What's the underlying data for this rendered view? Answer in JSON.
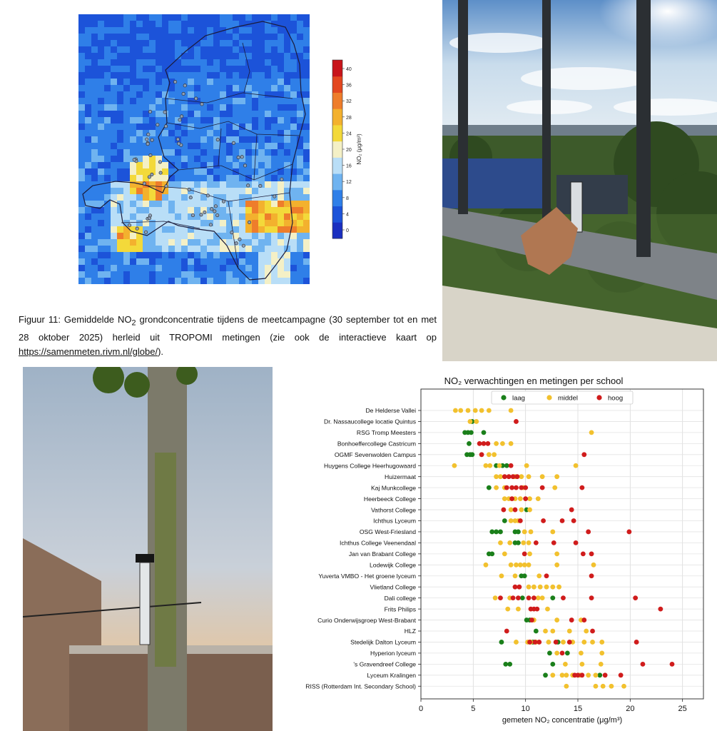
{
  "caption": {
    "text_before": "Figuur 11: Gemiddelde NO",
    "sub": "2",
    "text_after": " grondconcentratie tijdens de meetcampagne (30 september tot en met 28 oktober 2025) herleid uit TROPOMI metingen (zie ook de interactieve kaart op ",
    "link": "https://samenmeten.rivm.nl/globe/",
    "end": ")."
  },
  "map": {
    "colorbar_label": "NO₂ (μg/m³)",
    "colorbar_ticks": [
      "0",
      "4",
      "8",
      "12",
      "16",
      "20",
      "24",
      "28",
      "32",
      "36",
      "40"
    ],
    "colors": [
      "#1a2fc0",
      "#1c53d9",
      "#2f7fe8",
      "#6fb3f0",
      "#b9def7",
      "#f4f0c6",
      "#f3d93a",
      "#f3b12e",
      "#ee7d2b",
      "#e3471f",
      "#c8141a"
    ]
  },
  "chart_data": {
    "type": "scatter",
    "title": "NO₂ verwachtingen en metingen per school",
    "xlabel": "gemeten NO₂ concentratie (μg/m³)",
    "xlim": [
      0,
      27
    ],
    "xticks": [
      0,
      5,
      10,
      15,
      20,
      25
    ],
    "grid": true,
    "legend_position": "top-center",
    "series": [
      {
        "name": "laag",
        "color": "#1a7f1a"
      },
      {
        "name": "middel",
        "color": "#f2c12e"
      },
      {
        "name": "hoog",
        "color": "#d01c1c"
      }
    ],
    "schools": [
      {
        "name": "De Helderse Vallei",
        "laag": [],
        "middel": [
          3.3,
          3.8,
          4.5,
          5.2,
          5.8,
          6.5,
          8.6
        ],
        "hoog": []
      },
      {
        "name": "Dr. Nassaucollege locatie Quintus",
        "laag": [
          4.9
        ],
        "middel": [
          4.7,
          5.3
        ],
        "hoog": [
          9.1
        ]
      },
      {
        "name": "RSG Tromp Meesters",
        "laag": [
          4.2,
          4.5,
          4.8,
          6.0
        ],
        "middel": [
          16.3
        ],
        "hoog": []
      },
      {
        "name": "Bonhoeffercollege Castricum",
        "laag": [
          4.6
        ],
        "middel": [
          7.2,
          7.8,
          8.6
        ],
        "hoog": [
          5.6,
          6.0,
          6.4
        ]
      },
      {
        "name": "OGMF Sevenwolden Campus",
        "laag": [
          4.4,
          4.7,
          4.9
        ],
        "middel": [
          6.5,
          7.0
        ],
        "hoog": [
          5.8,
          15.6
        ]
      },
      {
        "name": "Huygens College Heerhugowaard",
        "laag": [
          7.2,
          7.8,
          8.2
        ],
        "middel": [
          3.2,
          6.2,
          6.6,
          7.5,
          10.1,
          14.8
        ],
        "hoog": [
          8.6
        ]
      },
      {
        "name": "Huizermaat",
        "laag": [],
        "middel": [
          7.2,
          7.6,
          9.0,
          9.6,
          10.3,
          11.6,
          13.0
        ],
        "hoog": [
          8.0,
          8.4,
          8.8,
          9.2
        ]
      },
      {
        "name": "Kaj Munkcollege",
        "laag": [
          6.5
        ],
        "middel": [
          7.2,
          8.0,
          9.8,
          12.8
        ],
        "hoog": [
          8.2,
          8.7,
          9.1,
          9.6,
          10.0,
          11.6,
          15.4
        ]
      },
      {
        "name": "Heerbeeck College",
        "laag": [],
        "middel": [
          8.0,
          8.4,
          9.0,
          9.5,
          10.4,
          11.2
        ],
        "hoog": [
          8.7,
          10.0
        ]
      },
      {
        "name": "Vathorst College",
        "laag": [
          10.1
        ],
        "middel": [
          8.6,
          9.6,
          10.4
        ],
        "hoog": [
          7.9,
          9.0,
          14.4
        ]
      },
      {
        "name": "Ichthus Lyceum",
        "laag": [
          8.0
        ],
        "middel": [
          8.6,
          9.0,
          9.3
        ],
        "hoog": [
          9.5,
          11.7,
          13.5,
          14.6
        ]
      },
      {
        "name": "OSG West-Friesland",
        "laag": [
          6.8,
          7.2,
          7.6,
          9.0,
          9.3
        ],
        "middel": [
          9.9,
          10.5,
          12.6
        ],
        "hoog": [
          16.0,
          19.9
        ]
      },
      {
        "name": "Ichthus College Veenendaal",
        "laag": [
          9.0,
          9.3
        ],
        "middel": [
          7.6,
          8.5,
          9.8,
          10.3
        ],
        "hoog": [
          11.0,
          12.7,
          14.8
        ]
      },
      {
        "name": "Jan van Brabant College",
        "laag": [
          6.5,
          6.8
        ],
        "middel": [
          8.0,
          10.4,
          13.0
        ],
        "hoog": [
          9.9,
          15.5,
          16.3
        ]
      },
      {
        "name": "Lodewijk College",
        "laag": [],
        "middel": [
          6.2,
          8.6,
          9.1,
          9.5,
          9.9,
          10.3,
          13.0,
          16.5
        ],
        "hoog": []
      },
      {
        "name": "Yuverta VMBO - Het groene lyceum",
        "laag": [
          9.6,
          9.9
        ],
        "middel": [
          7.7,
          9.0,
          11.3
        ],
        "hoog": [
          12.0,
          16.3
        ]
      },
      {
        "name": "Vlietland College",
        "laag": [],
        "middel": [
          10.3,
          10.8,
          11.4,
          12.0,
          12.6,
          13.2
        ],
        "hoog": [
          9.0,
          9.4
        ]
      },
      {
        "name": "Dali college",
        "laag": [
          9.7,
          12.6
        ],
        "middel": [
          7.1,
          8.5,
          11.2,
          11.6
        ],
        "hoog": [
          7.6,
          8.8,
          9.3,
          10.3,
          10.8,
          13.6,
          16.3,
          20.5
        ]
      },
      {
        "name": "Frits Philips",
        "laag": [],
        "middel": [
          8.3,
          9.3,
          12.1
        ],
        "hoog": [
          10.5,
          10.8,
          11.1,
          22.9
        ]
      },
      {
        "name": "Curio Onderwijsgroep West-Brabant",
        "laag": [
          10.1,
          10.4
        ],
        "middel": [
          10.8,
          13.0,
          15.3
        ],
        "hoog": [
          10.6,
          14.4,
          15.6
        ]
      },
      {
        "name": "HLZ",
        "laag": [
          11.0
        ],
        "middel": [
          11.9,
          12.6,
          14.2,
          15.8
        ],
        "hoog": [
          8.2,
          16.4
        ]
      },
      {
        "name": "Stedelijk Dalton Lyceum",
        "laag": [
          7.7,
          10.7,
          13.1
        ],
        "middel": [
          9.1,
          10.2,
          10.5,
          11.0,
          12.2,
          13.6,
          14.5,
          15.6,
          16.4,
          17.3
        ],
        "hoog": [
          10.4,
          10.9,
          11.3,
          12.9,
          14.2,
          20.6
        ]
      },
      {
        "name": "Hyperion lyceum",
        "laag": [
          12.3,
          14.0
        ],
        "middel": [
          13.0,
          15.3,
          17.3
        ],
        "hoog": [
          13.5
        ]
      },
      {
        "name": "'s Gravendreef College",
        "laag": [
          8.1,
          8.5,
          12.6
        ],
        "middel": [
          13.8,
          15.4,
          17.2
        ],
        "hoog": [
          21.2,
          24.0
        ]
      },
      {
        "name": "Lyceum Kralingen",
        "laag": [
          11.9,
          17.1
        ],
        "middel": [
          12.6,
          13.5,
          13.9,
          14.5,
          15.2,
          16.0,
          16.7
        ],
        "hoog": [
          14.7,
          15.0,
          15.4,
          17.6,
          19.1
        ]
      },
      {
        "name": "RISS (Rotterdam Int. Secondary School)",
        "laag": [],
        "middel": [
          13.9,
          16.7,
          17.4,
          18.2,
          19.4
        ],
        "hoog": []
      }
    ]
  }
}
